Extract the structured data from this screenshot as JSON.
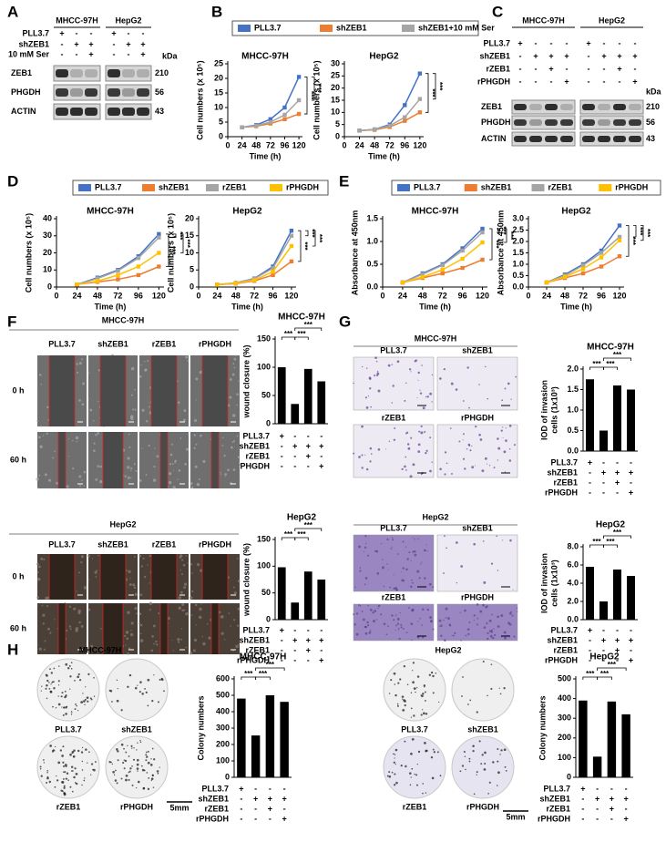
{
  "panel_letters": [
    "A",
    "B",
    "C",
    "D",
    "E",
    "F",
    "G",
    "H"
  ],
  "blots": [
    {
      "cell_lines": [
        "MHCC-97H",
        "HepG2"
      ],
      "conditions": [
        {
          "name": "PLL3.7",
          "signs": [
            "+",
            "-",
            "-",
            "+",
            "-",
            "-"
          ]
        },
        {
          "name": "shZEB1",
          "signs": [
            "-",
            "+",
            "+",
            "-",
            "+",
            "+"
          ]
        },
        {
          "name": "10 mM Ser",
          "signs": [
            "-",
            "-",
            "+",
            "-",
            "-",
            "+"
          ]
        }
      ],
      "unit": "kDa",
      "bands": [
        {
          "name": "ZEB1",
          "kda": 210
        },
        {
          "name": "PHGDH",
          "kda": 56
        },
        {
          "name": "ACTIN",
          "kda": 43
        }
      ]
    },
    {
      "cell_lines": [
        "MHCC-97H",
        "HepG2"
      ],
      "conditions": [
        {
          "name": "PLL3.7",
          "signs": [
            "+",
            "-",
            "-",
            "-",
            "+",
            "-",
            "-",
            "-"
          ]
        },
        {
          "name": "shZEB1",
          "signs": [
            "-",
            "+",
            "+",
            "+",
            "-",
            "+",
            "+",
            "+"
          ]
        },
        {
          "name": "rZEB1",
          "signs": [
            "-",
            "-",
            "+",
            "-",
            "-",
            "-",
            "+",
            "-"
          ]
        },
        {
          "name": "rPHGDH",
          "signs": [
            "-",
            "-",
            "-",
            "+",
            "-",
            "-",
            "-",
            "+"
          ]
        }
      ],
      "unit": "kDa",
      "bands": [
        {
          "name": "ZEB1",
          "kda": 210
        },
        {
          "name": "PHGDH",
          "kda": 56
        },
        {
          "name": "ACTIN",
          "kda": 43
        }
      ]
    }
  ],
  "chart_data": [
    {
      "type": "line",
      "title": "MHCC-97H",
      "ylabel": "Cell numbers (x 10⁵)",
      "xlabel": "Time (h)",
      "x": [
        24,
        48,
        72,
        96,
        120
      ],
      "xlim": [
        0,
        126
      ],
      "xticks": [
        0,
        24,
        48,
        72,
        96,
        120
      ],
      "ylim": [
        0,
        25
      ],
      "yticks": [
        0,
        5,
        10,
        15,
        20,
        25
      ],
      "series": [
        {
          "name": "PLL3.7",
          "color": "#4472c4",
          "values": [
            3.2,
            4,
            6,
            10,
            20.5
          ]
        },
        {
          "name": "shZEB1",
          "color": "#ed7d31",
          "values": [
            3.2,
            3.6,
            4.5,
            6,
            7.8
          ]
        },
        {
          "name": "shZEB1+10 mM Ser",
          "color": "#a5a5a5",
          "values": [
            3.2,
            3.8,
            5,
            7.5,
            12.5
          ]
        }
      ],
      "significance": [
        "***",
        "***"
      ]
    },
    {
      "type": "line",
      "title": "HepG2",
      "ylabel": "Cell numbers (x 10⁵)",
      "xlabel": "Time (h)",
      "x": [
        24,
        48,
        72,
        96,
        120
      ],
      "xlim": [
        0,
        126
      ],
      "xticks": [
        0,
        24,
        48,
        72,
        96,
        120
      ],
      "ylim": [
        0,
        30
      ],
      "yticks": [
        0,
        5,
        10,
        15,
        20,
        25,
        30
      ],
      "series": [
        {
          "color": "#4472c4",
          "values": [
            2.5,
            3,
            5,
            13,
            26
          ]
        },
        {
          "color": "#ed7d31",
          "values": [
            2.5,
            2.8,
            4,
            6.5,
            10
          ]
        },
        {
          "color": "#a5a5a5",
          "values": [
            2.5,
            3,
            4.5,
            8,
            15.5
          ]
        }
      ],
      "significance": [
        "***",
        "***"
      ]
    },
    {
      "type": "line",
      "title": "MHCC-97H",
      "ylabel": "Cell numbers (x 10⁵)",
      "xlabel": "Time (h)",
      "x": [
        24,
        48,
        72,
        96,
        120
      ],
      "xlim": [
        0,
        126
      ],
      "xticks": [
        0,
        24,
        48,
        72,
        96,
        120
      ],
      "ylim": [
        0,
        40
      ],
      "yticks": [
        0,
        10,
        20,
        30,
        40
      ],
      "series": [
        {
          "name": "PLL3.7",
          "color": "#4472c4",
          "values": [
            1.5,
            5.5,
            10,
            18,
            31
          ]
        },
        {
          "name": "shZEB1",
          "color": "#ed7d31",
          "values": [
            1.5,
            3,
            4.5,
            7,
            12
          ]
        },
        {
          "name": "rZEB1",
          "color": "#a5a5a5",
          "values": [
            1.5,
            5,
            9.5,
            17,
            29
          ]
        },
        {
          "name": "rPHGDH",
          "color": "#ffc000",
          "values": [
            1.5,
            3.5,
            7,
            12,
            20
          ]
        }
      ],
      "significance": [
        "***",
        "***",
        "***"
      ]
    },
    {
      "type": "line",
      "title": "HepG2",
      "ylabel": "Cell numbers (x 10⁵)",
      "xlabel": "Time (h)",
      "x": [
        24,
        48,
        72,
        96,
        120
      ],
      "xlim": [
        0,
        126
      ],
      "xticks": [
        0,
        24,
        48,
        72,
        96,
        120
      ],
      "ylim": [
        0,
        20
      ],
      "yticks": [
        0,
        5,
        10,
        15,
        20
      ],
      "series": [
        {
          "color": "#4472c4",
          "values": [
            0.7,
            1.2,
            2.5,
            6,
            16.5
          ]
        },
        {
          "color": "#ed7d31",
          "values": [
            0.7,
            1,
            1.8,
            3.5,
            7.5
          ]
        },
        {
          "color": "#a5a5a5",
          "values": [
            0.7,
            1.2,
            2.4,
            5.5,
            15
          ]
        },
        {
          "color": "#ffc000",
          "values": [
            0.7,
            1.1,
            2,
            4.5,
            12
          ]
        }
      ],
      "significance": [
        "***",
        "***",
        "***"
      ]
    },
    {
      "type": "line",
      "title": "MHCC-97H",
      "ylabel": "Absorbance at 450nm",
      "xlabel": "Time (h)",
      "x": [
        24,
        48,
        72,
        96,
        120
      ],
      "xlim": [
        0,
        126
      ],
      "xticks": [
        0,
        24,
        48,
        72,
        96,
        120
      ],
      "ylim": [
        0,
        1.5
      ],
      "yticks": [
        {
          "value": 0,
          "label": "0.0"
        },
        0.5,
        {
          "value": 1,
          "label": "1.0"
        },
        1.5
      ],
      "series": [
        {
          "name": "PLL3.7",
          "color": "#4472c4",
          "values": [
            0.1,
            0.3,
            0.5,
            0.85,
            1.28
          ]
        },
        {
          "name": "shZEB1",
          "color": "#ed7d31",
          "values": [
            0.1,
            0.2,
            0.3,
            0.42,
            0.6
          ]
        },
        {
          "name": "rZEB1",
          "color": "#a5a5a5",
          "values": [
            0.1,
            0.28,
            0.48,
            0.8,
            1.2
          ]
        },
        {
          "name": "rPHGDH",
          "color": "#ffc000",
          "values": [
            0.1,
            0.22,
            0.38,
            0.62,
            0.98
          ]
        }
      ],
      "significance": [
        "***",
        "***",
        "***"
      ]
    },
    {
      "type": "line",
      "title": "HepG2",
      "ylabel": "Absorbance at 450nm",
      "xlabel": "Time (h)",
      "x": [
        24,
        48,
        72,
        96,
        120
      ],
      "xlim": [
        0,
        126
      ],
      "xticks": [
        0,
        24,
        48,
        72,
        96,
        120
      ],
      "ylim": [
        0,
        3
      ],
      "yticks": [
        {
          "value": 0,
          "label": "0.0"
        },
        0.5,
        {
          "value": 1,
          "label": "1.0"
        },
        1.5,
        {
          "value": 2,
          "label": "2.0"
        },
        2.5,
        {
          "value": 3,
          "label": "3.0"
        }
      ],
      "series": [
        {
          "color": "#4472c4",
          "values": [
            0.2,
            0.55,
            1,
            1.6,
            2.7
          ]
        },
        {
          "color": "#ed7d31",
          "values": [
            0.2,
            0.4,
            0.6,
            0.9,
            1.35
          ]
        },
        {
          "color": "#a5a5a5",
          "values": [
            0.2,
            0.5,
            0.95,
            1.5,
            2.2
          ]
        },
        {
          "color": "#ffc000",
          "values": [
            0.2,
            0.45,
            0.8,
            1.3,
            2.05
          ]
        }
      ],
      "significance": [
        "***",
        "***",
        "***"
      ]
    },
    {
      "type": "bar",
      "title": "MHCC-97H",
      "ylabel": [
        "Relative",
        "wound closure (%)"
      ],
      "values": [
        100,
        35,
        97,
        75
      ],
      "color": "#000000",
      "ylim": [
        0,
        150
      ],
      "yticks": [
        0,
        50,
        100,
        150
      ],
      "conditions": [
        {
          "name": "PLL3.7",
          "signs": [
            "+",
            "-",
            "-",
            "-"
          ]
        },
        {
          "name": "shZEB1",
          "signs": [
            "-",
            "+",
            "+",
            "+"
          ]
        },
        {
          "name": "rZEB1",
          "signs": [
            "-",
            "-",
            "+",
            "-"
          ]
        },
        {
          "name": "rPHGDH",
          "signs": [
            "-",
            "-",
            "-",
            "+"
          ]
        }
      ],
      "significance": [
        "***",
        "***",
        "***"
      ]
    },
    {
      "type": "bar",
      "title": "HepG2",
      "ylabel": [
        "Relative",
        "wound closure (%)"
      ],
      "values": [
        98,
        32,
        90,
        75
      ],
      "color": "#000000",
      "ylim": [
        0,
        150
      ],
      "yticks": [
        0,
        50,
        100,
        150
      ],
      "conditions": [
        {
          "name": "PLL3.7",
          "signs": [
            "+",
            "-",
            "-",
            "-"
          ]
        },
        {
          "name": "shZEB1",
          "signs": [
            "-",
            "+",
            "+",
            "+"
          ]
        },
        {
          "name": "rZEB1",
          "signs": [
            "-",
            "-",
            "+",
            "-"
          ]
        },
        {
          "name": "rPHGDH",
          "signs": [
            "-",
            "-",
            "-",
            "+"
          ]
        }
      ],
      "significance": [
        "***",
        "***",
        "***"
      ]
    },
    {
      "type": "bar",
      "title": "MHCC-97H",
      "ylabel": [
        "IOD of invasion",
        "cells (1x10³)"
      ],
      "values": [
        1.75,
        0.5,
        1.6,
        1.5
      ],
      "color": "#000000",
      "ylim": [
        0,
        2
      ],
      "yticks": [
        {
          "value": 0,
          "label": "0.0"
        },
        0.5,
        {
          "value": 1,
          "label": "1.0"
        },
        1.5,
        {
          "value": 2,
          "label": "2.0"
        }
      ],
      "conditions": [
        {
          "name": "PLL3.7",
          "signs": [
            "+",
            "-",
            "-",
            "-"
          ]
        },
        {
          "name": "shZEB1",
          "signs": [
            "-",
            "+",
            "+",
            "+"
          ]
        },
        {
          "name": "rZEB1",
          "signs": [
            "-",
            "-",
            "+",
            "-"
          ]
        },
        {
          "name": "rPHGDH",
          "signs": [
            "-",
            "-",
            "-",
            "+"
          ]
        }
      ],
      "significance": [
        "***",
        "***",
        "***"
      ]
    },
    {
      "type": "bar",
      "title": "HepG2",
      "ylabel": [
        "IOD of invasion",
        "cells (1x10³)"
      ],
      "values": [
        5.8,
        2,
        5.5,
        4.8
      ],
      "color": "#000000",
      "ylim": [
        0,
        8
      ],
      "yticks": [
        {
          "value": 0,
          "label": "0.0"
        },
        {
          "value": 2,
          "label": "2.0"
        },
        {
          "value": 4,
          "label": "4.0"
        },
        {
          "value": 6,
          "label": "6.0"
        },
        {
          "value": 8,
          "label": "8.0"
        }
      ],
      "conditions": [
        {
          "name": "PLL3.7",
          "signs": [
            "+",
            "-",
            "-",
            "-"
          ]
        },
        {
          "name": "shZEB1",
          "signs": [
            "-",
            "+",
            "+",
            "+"
          ]
        },
        {
          "name": "rZEB1",
          "signs": [
            "-",
            "-",
            "+",
            "-"
          ]
        },
        {
          "name": "rPHGDH",
          "signs": [
            "-",
            "-",
            "-",
            "+"
          ]
        }
      ],
      "significance": [
        "***",
        "***",
        "***"
      ]
    },
    {
      "type": "bar",
      "title": "MHCC-97H",
      "ylabel": [
        "Colony numbers"
      ],
      "values": [
        480,
        255,
        500,
        460
      ],
      "color": "#000000",
      "ylim": [
        0,
        600
      ],
      "yticks": [
        0,
        100,
        200,
        300,
        400,
        500,
        600
      ],
      "conditions": [
        {
          "name": "PLL3.7",
          "signs": [
            "+",
            "-",
            "-",
            "-"
          ]
        },
        {
          "name": "shZEB1",
          "signs": [
            "-",
            "+",
            "+",
            "+"
          ]
        },
        {
          "name": "rZEB1",
          "signs": [
            "-",
            "-",
            "+",
            "-"
          ]
        },
        {
          "name": "rPHGDH",
          "signs": [
            "-",
            "-",
            "-",
            "+"
          ]
        }
      ],
      "significance": [
        "***",
        "***",
        "***"
      ]
    },
    {
      "type": "bar",
      "title": "HepG2",
      "ylabel": [
        "Colony numbers"
      ],
      "values": [
        390,
        105,
        385,
        320
      ],
      "color": "#000000",
      "ylim": [
        0,
        500
      ],
      "yticks": [
        0,
        100,
        200,
        300,
        400,
        500
      ],
      "conditions": [
        {
          "name": "PLL3.7",
          "signs": [
            "+",
            "-",
            "-",
            "-"
          ]
        },
        {
          "name": "shZEB1",
          "signs": [
            "-",
            "+",
            "+",
            "+"
          ]
        },
        {
          "name": "rZEB1",
          "signs": [
            "-",
            "-",
            "+",
            "-"
          ]
        },
        {
          "name": "rPHGDH",
          "signs": [
            "-",
            "-",
            "-",
            "+"
          ]
        }
      ],
      "significance": [
        "***",
        "***",
        "***"
      ]
    }
  ],
  "image_panels": [
    {
      "groups": [
        {
          "title": "MHCC-97H",
          "columns": [
            "PLL3.7",
            "shZEB1",
            "rZEB1",
            "rPHGDH"
          ],
          "rows": [
            "0 h",
            "60 h"
          ]
        },
        {
          "title": "HepG2",
          "columns": [
            "PLL3.7",
            "shZEB1",
            "rZEB1",
            "rPHGDH"
          ],
          "rows": [
            "0 h",
            "60 h"
          ]
        }
      ]
    },
    {
      "groups": [
        {
          "title": "MHCC-97H",
          "labels": [
            "PLL3.7",
            "shZEB1",
            "rZEB1",
            "rPHGDH"
          ]
        },
        {
          "title": "HepG2",
          "labels": [
            "PLL3.7",
            "shZEB1",
            "rZEB1",
            "rPHGDH"
          ]
        }
      ]
    },
    {
      "groups": [
        {
          "title": "MHCC-97H",
          "labels": [
            "PLL3.7",
            "shZEB1",
            "rZEB1",
            "rPHGDH"
          ],
          "scale": "5mm"
        },
        {
          "title": "HepG2",
          "labels": [
            "PLL3.7",
            "shZEB1",
            "rZEB1",
            "rPHGDH"
          ],
          "scale": "5mm"
        }
      ]
    }
  ]
}
